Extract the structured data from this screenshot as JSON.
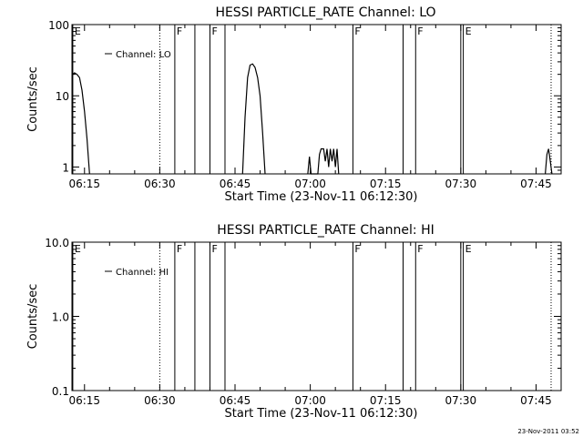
{
  "timestamp": "23-Nov-2011 03:52",
  "chart_data": [
    {
      "type": "line",
      "title": "HESSI PARTICLE_RATE Channel: LO",
      "xlabel": "Start Time (23-Nov-11 06:12:30)",
      "ylabel": "Counts/sec",
      "y_scale": "log",
      "xlim": [
        "06:12:30",
        "07:50:00"
      ],
      "ylim": [
        0.8,
        100
      ],
      "x_ticks": [
        "06:15",
        "06:30",
        "06:45",
        "07:00",
        "07:15",
        "07:30",
        "07:45"
      ],
      "y_ticks": [
        {
          "value": 1,
          "label": "1"
        },
        {
          "value": 10,
          "label": "10"
        },
        {
          "value": 100,
          "label": "100"
        }
      ],
      "legend": {
        "label": "Channel: LO",
        "position": "top-left"
      },
      "markers": [
        {
          "time": "06:12:40",
          "label": "E",
          "style": "solid"
        },
        {
          "time": "06:30:00",
          "label": "",
          "style": "dotted"
        },
        {
          "time": "06:33:00",
          "label": "F",
          "style": "solid"
        },
        {
          "time": "06:37:00",
          "label": "",
          "style": "solid"
        },
        {
          "time": "06:40:00",
          "label": "F",
          "style": "solid"
        },
        {
          "time": "06:43:00",
          "label": "",
          "style": "solid"
        },
        {
          "time": "07:08:30",
          "label": "F",
          "style": "solid"
        },
        {
          "time": "07:18:30",
          "label": "",
          "style": "solid"
        },
        {
          "time": "07:21:00",
          "label": "F",
          "style": "solid"
        },
        {
          "time": "07:30:00",
          "label": "",
          "style": "solid"
        },
        {
          "time": "07:30:30",
          "label": "E",
          "style": "solid"
        },
        {
          "time": "07:48:00",
          "label": "",
          "style": "dotted"
        }
      ],
      "series": [
        {
          "points": [
            [
              "06:12:40",
              20
            ],
            [
              "06:13:00",
              21
            ],
            [
              "06:13:30",
              20
            ],
            [
              "06:14:00",
              18
            ],
            [
              "06:14:30",
              12
            ],
            [
              "06:15:00",
              6
            ],
            [
              "06:15:30",
              2.5
            ],
            [
              "06:16:00",
              0.8
            ]
          ]
        },
        {
          "points": [
            [
              "06:46:30",
              0.8
            ],
            [
              "06:47:00",
              5
            ],
            [
              "06:47:30",
              18
            ],
            [
              "06:48:00",
              27
            ],
            [
              "06:48:30",
              28
            ],
            [
              "06:49:00",
              25
            ],
            [
              "06:49:30",
              18
            ],
            [
              "06:50:00",
              10
            ],
            [
              "06:50:30",
              3
            ],
            [
              "06:51:00",
              0.8
            ]
          ]
        },
        {
          "points": [
            [
              "06:59:30",
              0.8
            ],
            [
              "06:59:50",
              1.4
            ],
            [
              "07:00:10",
              0.8
            ],
            [
              "07:01:30",
              0.8
            ],
            [
              "07:01:50",
              1.5
            ],
            [
              "07:02:10",
              1.8
            ],
            [
              "07:02:40",
              1.8
            ],
            [
              "07:03:00",
              1.2
            ],
            [
              "07:03:20",
              1.8
            ],
            [
              "07:03:40",
              1.0
            ],
            [
              "07:04:00",
              1.8
            ],
            [
              "07:04:20",
              1.2
            ],
            [
              "07:04:40",
              1.8
            ],
            [
              "07:05:00",
              1.0
            ],
            [
              "07:05:20",
              1.8
            ],
            [
              "07:05:40",
              0.8
            ]
          ]
        },
        {
          "points": [
            [
              "07:46:50",
              0.8
            ],
            [
              "07:47:10",
              1.5
            ],
            [
              "07:47:30",
              1.8
            ],
            [
              "07:47:50",
              1.2
            ],
            [
              "07:48:10",
              0.8
            ]
          ]
        }
      ]
    },
    {
      "type": "line",
      "title": "HESSI PARTICLE_RATE Channel: HI",
      "xlabel": "Start Time (23-Nov-11 06:12:30)",
      "ylabel": "Counts/sec",
      "y_scale": "log",
      "xlim": [
        "06:12:30",
        "07:50:00"
      ],
      "ylim": [
        0.1,
        10
      ],
      "x_ticks": [
        "06:15",
        "06:30",
        "06:45",
        "07:00",
        "07:15",
        "07:30",
        "07:45"
      ],
      "y_ticks": [
        {
          "value": 0.1,
          "label": "0.1"
        },
        {
          "value": 1,
          "label": "1.0"
        },
        {
          "value": 10,
          "label": "10.0"
        }
      ],
      "legend": {
        "label": "Channel: HI",
        "position": "top-left"
      },
      "markers": [
        {
          "time": "06:12:40",
          "label": "E",
          "style": "solid"
        },
        {
          "time": "06:30:00",
          "label": "",
          "style": "dotted"
        },
        {
          "time": "06:33:00",
          "label": "F",
          "style": "solid"
        },
        {
          "time": "06:37:00",
          "label": "",
          "style": "solid"
        },
        {
          "time": "06:40:00",
          "label": "F",
          "style": "solid"
        },
        {
          "time": "06:43:00",
          "label": "",
          "style": "solid"
        },
        {
          "time": "07:08:30",
          "label": "F",
          "style": "solid"
        },
        {
          "time": "07:18:30",
          "label": "",
          "style": "solid"
        },
        {
          "time": "07:21:00",
          "label": "F",
          "style": "solid"
        },
        {
          "time": "07:30:00",
          "label": "",
          "style": "solid"
        },
        {
          "time": "07:30:30",
          "label": "E",
          "style": "solid"
        },
        {
          "time": "07:48:00",
          "label": "",
          "style": "dotted"
        }
      ],
      "series": []
    }
  ]
}
